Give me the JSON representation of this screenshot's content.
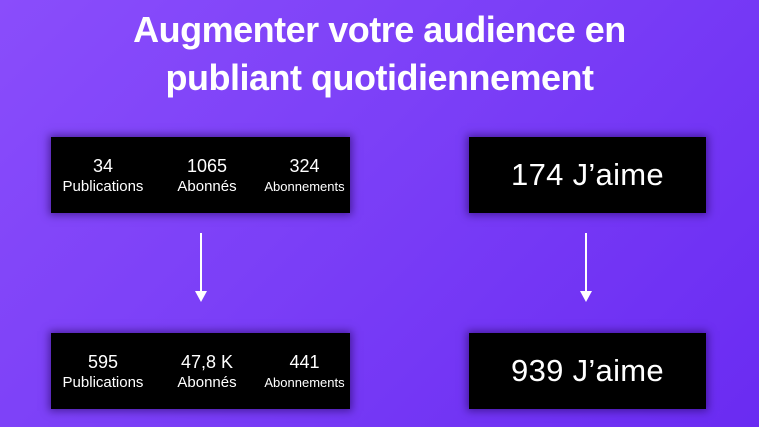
{
  "headline": {
    "line1": "Augmenter votre audience en",
    "line2": "publiant quotidiennement"
  },
  "before": {
    "stats": [
      {
        "value": "34",
        "label": "Publications"
      },
      {
        "value": "1065",
        "label": "Abonnés"
      },
      {
        "value": "324",
        "label": "Abonnements"
      }
    ],
    "likes": "174 J’aime"
  },
  "after": {
    "stats": [
      {
        "value": "595",
        "label": "Publications"
      },
      {
        "value": "47,8 K",
        "label": "Abonnés"
      },
      {
        "value": "441",
        "label": "Abonnements"
      }
    ],
    "likes": "939 J’aime"
  },
  "colors": {
    "background_start": "#8a4dfb",
    "background_end": "#6a2bf2",
    "card": "#000000",
    "text": "#ffffff"
  }
}
